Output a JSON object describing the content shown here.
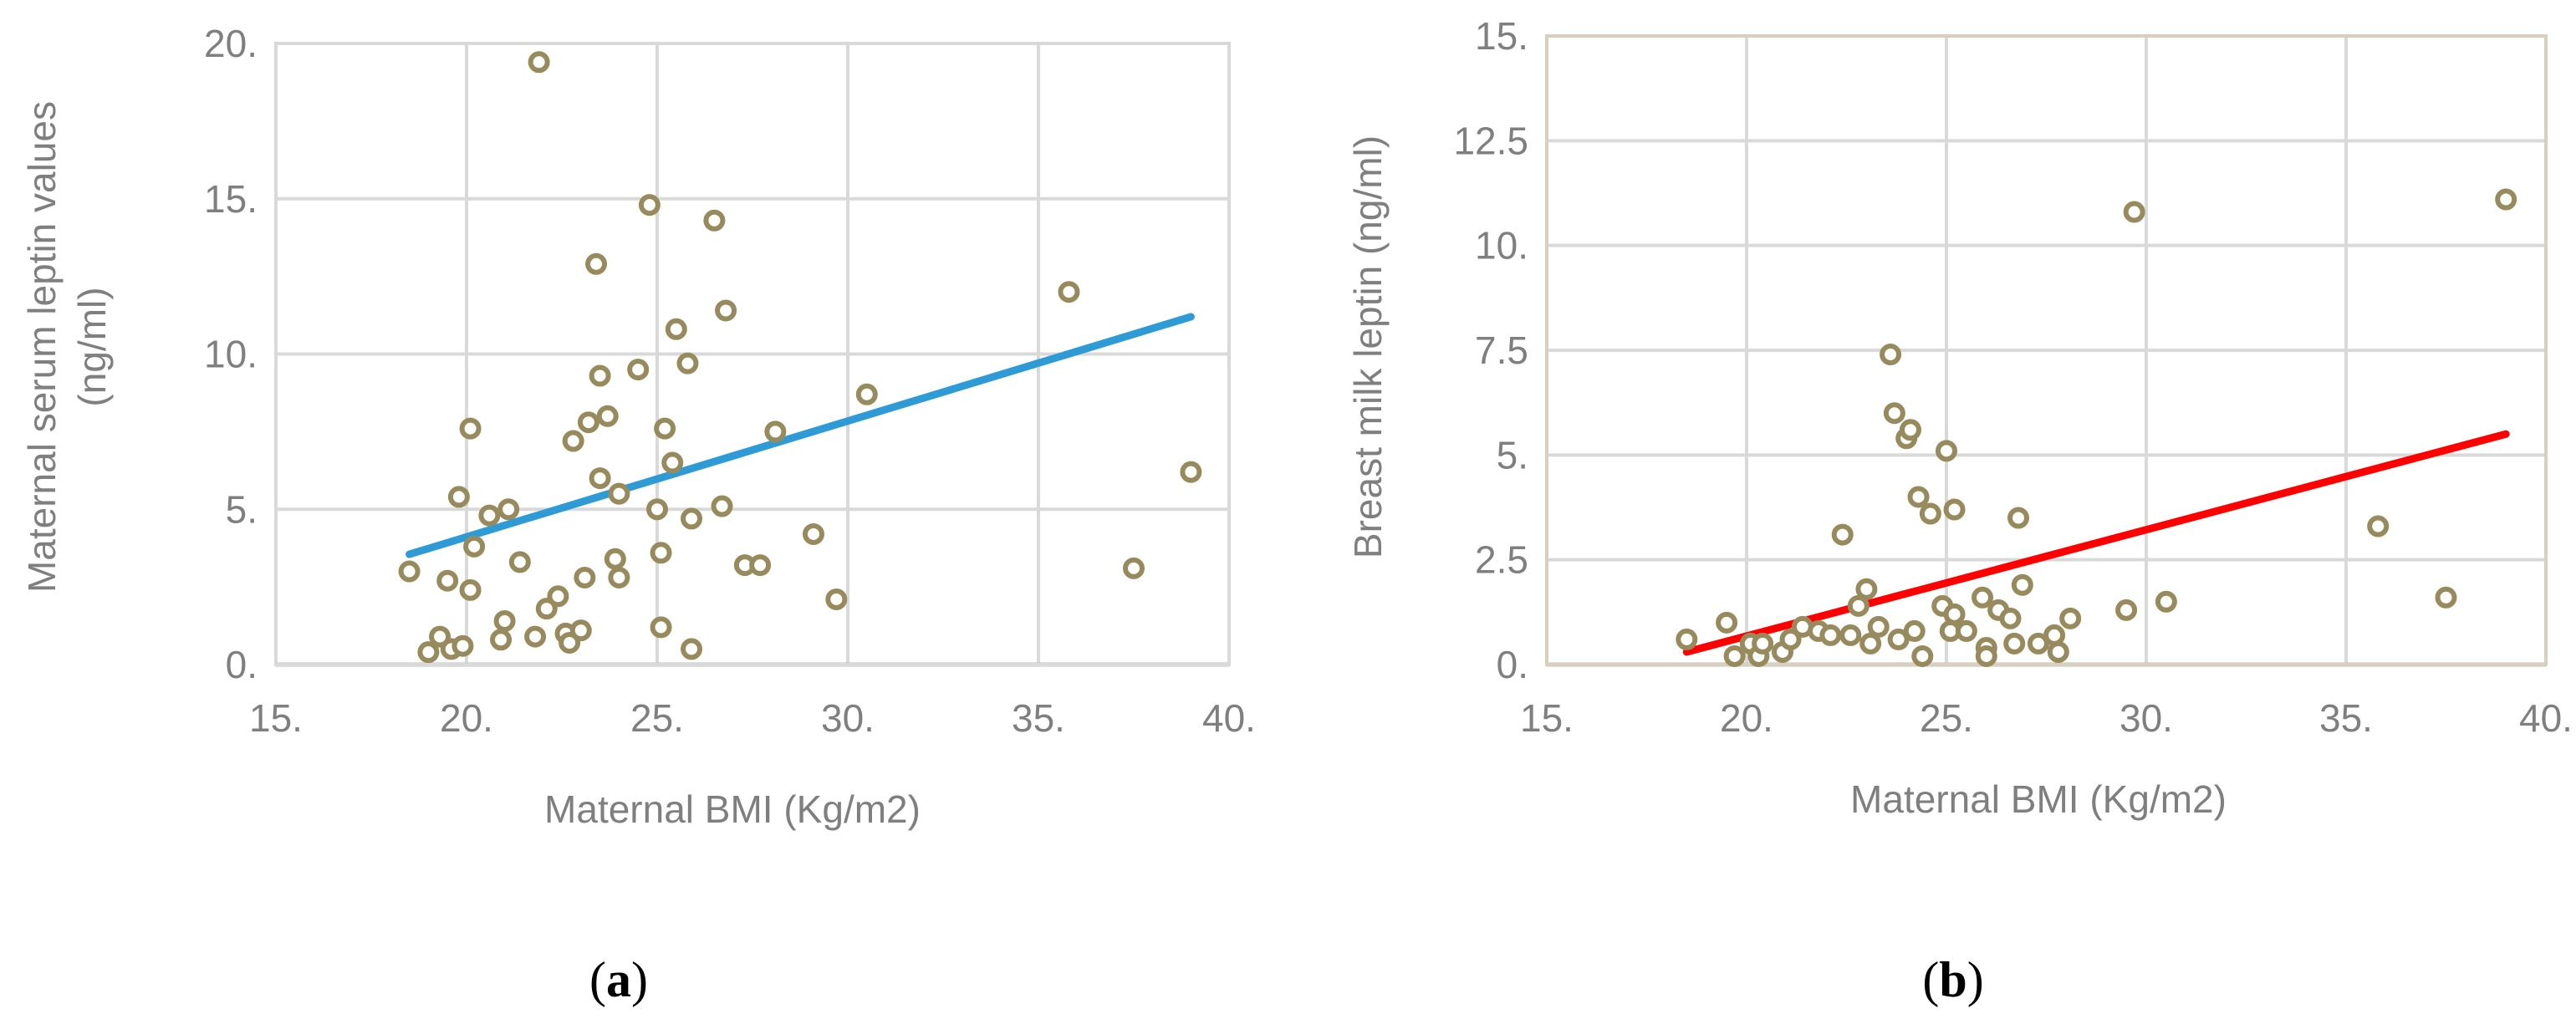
{
  "chart_data": [
    {
      "type": "scatter",
      "panel_label": {
        "open": "(",
        "letter": "a",
        "close": ")"
      },
      "xlabel": "Maternal BMI (Kg/m2)",
      "ylabel_line1": "Maternal serum leptin values",
      "ylabel_line2": "(ng/ml)",
      "xlim": [
        15,
        40
      ],
      "ylim": [
        0,
        20
      ],
      "x_ticks": [
        15,
        20,
        25,
        30,
        35,
        40
      ],
      "x_tick_labels": [
        "15.",
        "20.",
        "25.",
        "30.",
        "35.",
        "40."
      ],
      "y_ticks": [
        0,
        5,
        10,
        15,
        20
      ],
      "y_tick_labels": [
        "0.",
        "5.",
        "10.",
        "15.",
        "20."
      ],
      "marker_color": "#978b5d",
      "trendline_color": "#2e9bd6",
      "grid_color": "#d9d9d9",
      "frame_color": "#d9d9d9",
      "trendline": {
        "x": [
          18.5,
          39.0
        ],
        "y": [
          3.55,
          11.2
        ]
      },
      "points": [
        [
          18.5,
          3.0
        ],
        [
          19.0,
          0.4
        ],
        [
          19.3,
          0.9
        ],
        [
          19.5,
          2.7
        ],
        [
          19.6,
          0.5
        ],
        [
          19.8,
          5.4
        ],
        [
          19.9,
          0.6
        ],
        [
          20.1,
          7.6
        ],
        [
          20.1,
          2.4
        ],
        [
          20.2,
          3.8
        ],
        [
          20.6,
          4.8
        ],
        [
          20.9,
          0.8
        ],
        [
          21.0,
          1.4
        ],
        [
          21.1,
          5.0
        ],
        [
          21.4,
          3.3
        ],
        [
          21.8,
          0.9
        ],
        [
          21.9,
          19.4
        ],
        [
          22.1,
          1.8
        ],
        [
          22.4,
          2.2
        ],
        [
          22.6,
          1.0
        ],
        [
          22.7,
          0.7
        ],
        [
          22.8,
          7.2
        ],
        [
          23.0,
          1.1
        ],
        [
          23.1,
          2.8
        ],
        [
          23.2,
          7.8
        ],
        [
          23.4,
          12.9
        ],
        [
          23.5,
          6.0
        ],
        [
          23.5,
          9.3
        ],
        [
          23.7,
          8.0
        ],
        [
          23.9,
          3.4
        ],
        [
          24.0,
          5.5
        ],
        [
          24.0,
          2.8
        ],
        [
          24.5,
          9.5
        ],
        [
          24.8,
          14.8
        ],
        [
          25.0,
          5.0
        ],
        [
          25.1,
          1.2
        ],
        [
          25.1,
          3.6
        ],
        [
          25.2,
          7.6
        ],
        [
          25.4,
          6.5
        ],
        [
          25.5,
          10.8
        ],
        [
          25.8,
          9.7
        ],
        [
          25.9,
          4.7
        ],
        [
          25.9,
          0.5
        ],
        [
          26.5,
          14.3
        ],
        [
          26.7,
          5.1
        ],
        [
          26.8,
          11.4
        ],
        [
          27.3,
          3.2
        ],
        [
          27.7,
          3.2
        ],
        [
          28.1,
          7.5
        ],
        [
          29.1,
          4.2
        ],
        [
          29.7,
          2.1
        ],
        [
          30.5,
          8.7
        ],
        [
          35.8,
          12.0
        ],
        [
          37.5,
          3.1
        ],
        [
          39.0,
          6.2
        ]
      ]
    },
    {
      "type": "scatter",
      "panel_label": {
        "open": "(",
        "letter": "b",
        "close": ")"
      },
      "xlabel": "Maternal BMI (Kg/m2)",
      "ylabel_line1": "Breast milk leptin (ng/ml)",
      "ylabel_line2": "",
      "xlim": [
        15,
        40
      ],
      "ylim": [
        0,
        15
      ],
      "x_ticks": [
        15,
        20,
        25,
        30,
        35,
        40
      ],
      "x_tick_labels": [
        "15.",
        "20.",
        "25.",
        "30.",
        "35.",
        "40."
      ],
      "y_ticks": [
        0,
        2.5,
        5,
        7.5,
        10,
        12.5,
        15
      ],
      "y_tick_labels": [
        "0.",
        "2.5",
        "5.",
        "7.5",
        "10.",
        "12.5",
        "15."
      ],
      "marker_color": "#978b5d",
      "trendline_color": "#ff0000",
      "grid_color": "#d9d9d9",
      "frame_color": "#d8d0bc",
      "trendline": {
        "x": [
          18.5,
          39.0
        ],
        "y": [
          0.3,
          5.5
        ]
      },
      "points": [
        [
          18.5,
          0.6
        ],
        [
          19.5,
          1.0
        ],
        [
          19.7,
          0.2
        ],
        [
          20.1,
          0.5
        ],
        [
          20.3,
          0.2
        ],
        [
          20.4,
          0.5
        ],
        [
          20.9,
          0.3
        ],
        [
          21.1,
          0.6
        ],
        [
          21.4,
          0.9
        ],
        [
          21.8,
          0.8
        ],
        [
          22.1,
          0.7
        ],
        [
          22.4,
          3.1
        ],
        [
          22.6,
          0.7
        ],
        [
          22.8,
          1.4
        ],
        [
          23.0,
          1.8
        ],
        [
          23.1,
          0.5
        ],
        [
          23.3,
          0.9
        ],
        [
          23.6,
          7.4
        ],
        [
          23.7,
          6.0
        ],
        [
          23.8,
          0.6
        ],
        [
          24.0,
          5.4
        ],
        [
          24.1,
          5.6
        ],
        [
          24.2,
          0.8
        ],
        [
          24.3,
          4.0
        ],
        [
          24.4,
          0.2
        ],
        [
          24.6,
          3.6
        ],
        [
          24.9,
          1.4
        ],
        [
          25.0,
          5.1
        ],
        [
          25.1,
          0.8
        ],
        [
          25.2,
          1.2
        ],
        [
          25.2,
          3.7
        ],
        [
          25.5,
          0.8
        ],
        [
          25.9,
          1.6
        ],
        [
          26.0,
          0.4
        ],
        [
          26.0,
          0.2
        ],
        [
          26.3,
          1.3
        ],
        [
          26.6,
          1.1
        ],
        [
          26.7,
          0.5
        ],
        [
          26.8,
          3.5
        ],
        [
          26.9,
          1.9
        ],
        [
          27.3,
          0.5
        ],
        [
          27.7,
          0.7
        ],
        [
          27.8,
          0.3
        ],
        [
          28.1,
          1.1
        ],
        [
          29.5,
          1.3
        ],
        [
          29.7,
          10.8
        ],
        [
          30.5,
          1.5
        ],
        [
          35.8,
          3.3
        ],
        [
          37.5,
          1.6
        ],
        [
          39.0,
          11.1
        ]
      ]
    }
  ]
}
